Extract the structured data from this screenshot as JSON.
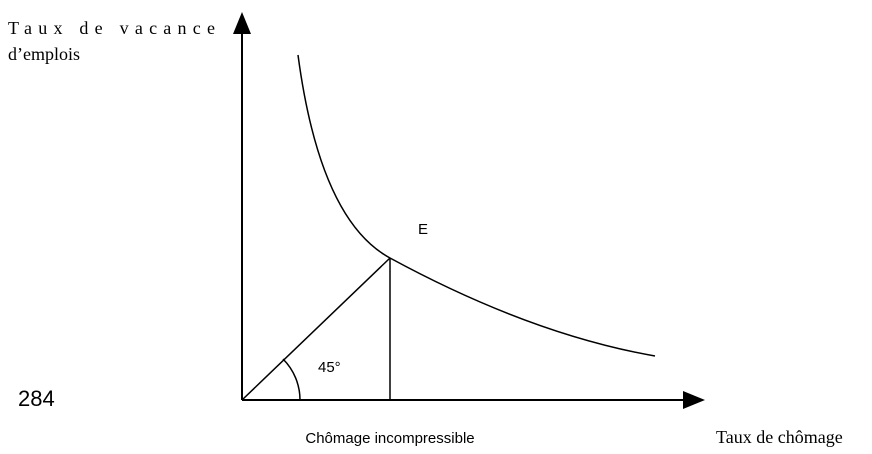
{
  "y_axis_label": [
    "Taux de vacance",
    "d’emplois"
  ],
  "x_axis_label": "Taux de chômage",
  "point_label": "E",
  "angle_label": "45°",
  "x_marker_label": "Chômage incompressible",
  "page_number": "284"
}
